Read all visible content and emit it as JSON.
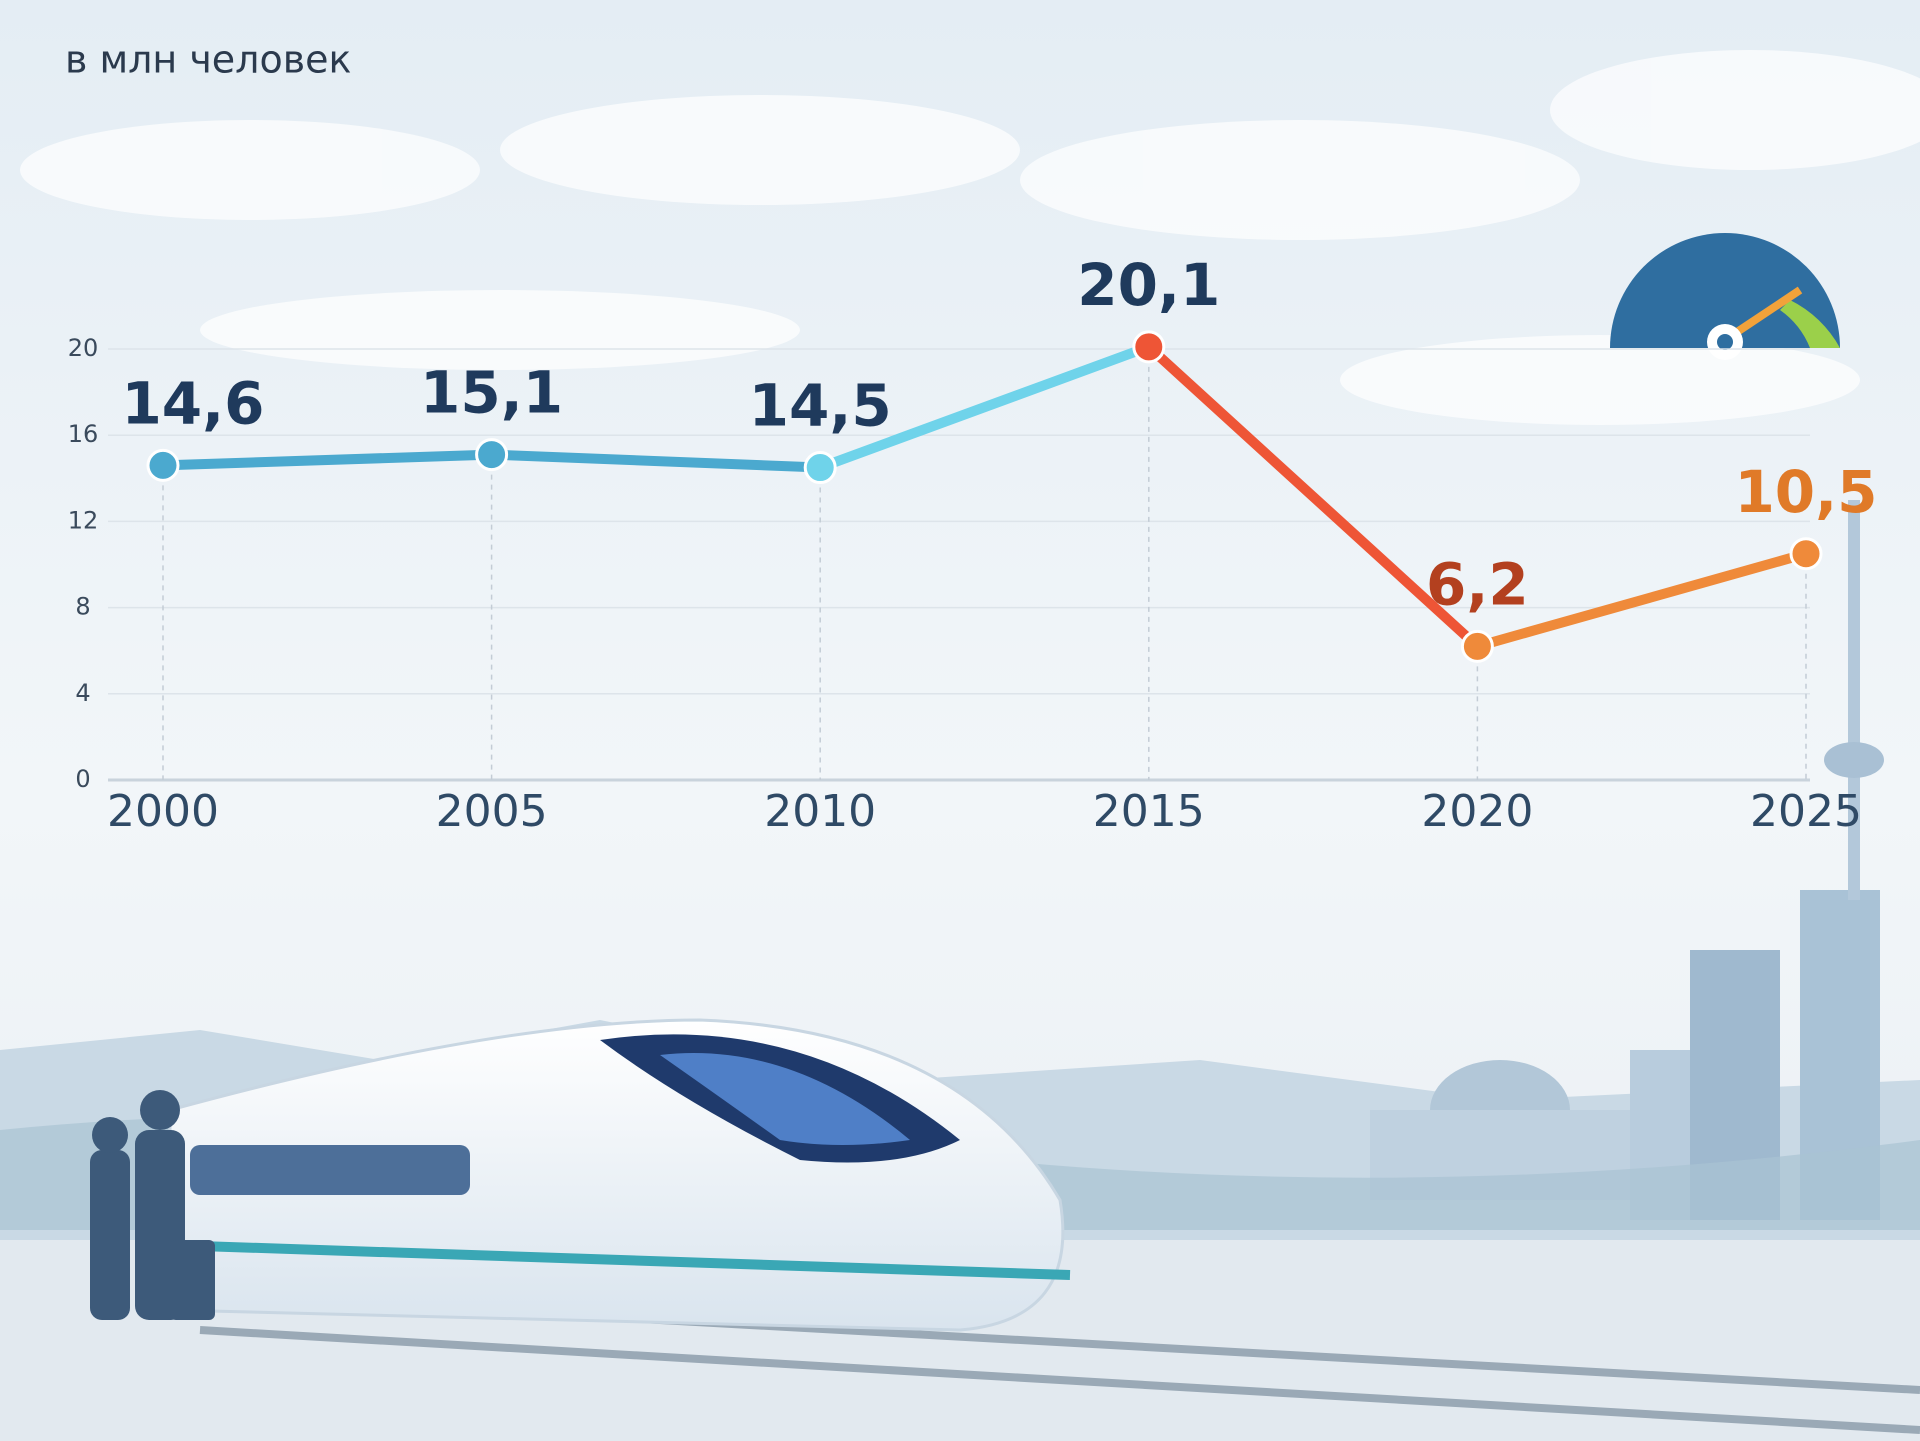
{
  "chart_data": {
    "type": "line",
    "subtitle": "в млн человек",
    "x": [
      2000,
      2005,
      2010,
      2015,
      2020,
      2025
    ],
    "values": [
      14.6,
      15.1,
      14.5,
      20.1,
      6.2,
      10.5
    ],
    "value_labels": [
      "14,6",
      "15,1",
      "14,5",
      "20,1",
      "6,2",
      "10,5"
    ],
    "xlim": [
      2000,
      2025
    ],
    "xticks": [
      2000,
      2005,
      2010,
      2015,
      2020,
      2025
    ],
    "ylim": [
      0,
      20
    ],
    "yticks": [
      0,
      4,
      8,
      12,
      16,
      20
    ],
    "grid": true,
    "segment_colors": [
      "#4ba9cf",
      "#4ba9cf",
      "#6fd3ea",
      "#ee5536",
      "#ef8a3a"
    ],
    "point_colors": [
      "#4ba9cf",
      "#4ba9cf",
      "#6fd3ea",
      "#ee5536",
      "#ef8a3a",
      "#ef8a3a"
    ],
    "label_colors": [
      "#1f3a5c",
      "#1f3a5c",
      "#1f3a5c",
      "#1f3a5c",
      "#b3401f",
      "#e07a28"
    ]
  }
}
